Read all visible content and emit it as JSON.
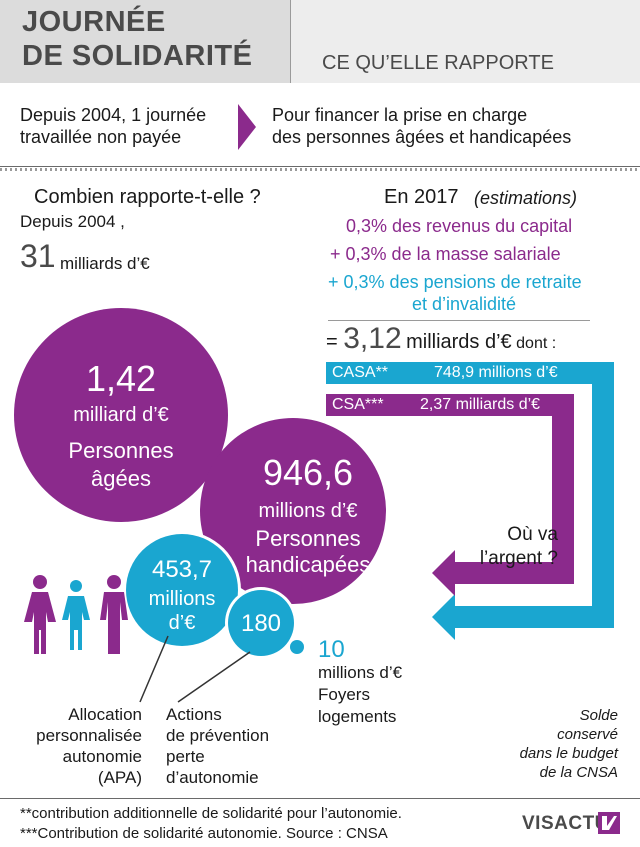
{
  "header": {
    "title_line1": "JOURNÉE",
    "title_line2": "DE SOLIDARITÉ",
    "subtitle": "CE QU’ELLE RAPPORTE"
  },
  "intro": {
    "left_line1": "Depuis 2004, 1 journée",
    "left_line2": "travaillée non payée",
    "right_line1": "Pour financer la prise en charge",
    "right_line2": "des personnes âgées et handicapées"
  },
  "left_section": {
    "question": "Combien rapporte-t-elle ?",
    "since": "Depuis 2004 ,",
    "total_value": "31",
    "total_unit": "milliards d’€"
  },
  "right_section": {
    "year_label": "En 2017",
    "estimations": "(estimations)",
    "line1_value": "0,3",
    "line1_text": "% des revenus du capital",
    "line2_prefix": "+ ",
    "line2_value": "0,3",
    "line2_text": "% de la masse salariale",
    "line3_prefix": "+ ",
    "line3_value": "0,3",
    "line3_text": "% des pensions de retraite",
    "line3_text2": "et d’invalidité",
    "total_prefix": "= ",
    "total_value": "3,12",
    "total_unit": "milliards d’€",
    "total_suffix": "dont :",
    "casa_label": "CASA**",
    "casa_value": "748,9 millions d’€",
    "csa_label": "CSA***",
    "csa_value": "2,37 milliards d’€",
    "where_line1": "Où va",
    "where_line2": "l’argent ?"
  },
  "circles": {
    "elderly": {
      "value": "1,42",
      "unit": "milliard d’€",
      "label1": "Personnes",
      "label2": "âgées"
    },
    "disabled": {
      "value": "946,6",
      "unit": "millions d’€",
      "label1": "Personnes",
      "label2": "handicapées"
    },
    "apa": {
      "value": "453,7",
      "unit1": "millions",
      "unit2": "d’€"
    },
    "prevention": {
      "value": "180"
    },
    "housing": {
      "value": "10",
      "unit": "millions d’€",
      "label1": "Foyers",
      "label2": "logements"
    }
  },
  "captions": {
    "apa_1": "Allocation",
    "apa_2": "personnalisée",
    "apa_3": "autonomie",
    "apa_4": "(APA)",
    "prev_1": "Actions",
    "prev_2": "de prévention",
    "prev_3": "perte",
    "prev_4": "d’autonomie",
    "solde_1": "Solde",
    "solde_2": "conservé",
    "solde_3": "dans le budget",
    "solde_4": "de la CNSA"
  },
  "footnotes": {
    "line1": "**contribution additionnelle de solidarité pour l’autonomie.",
    "line2": "***Contribution de solidarité autonomie.  Source : CNSA"
  },
  "brand": {
    "name": "VISACTU"
  },
  "colors": {
    "purple": "#8b2a8c",
    "cyan": "#1aa6d0",
    "grey": "#4a4a4a"
  }
}
